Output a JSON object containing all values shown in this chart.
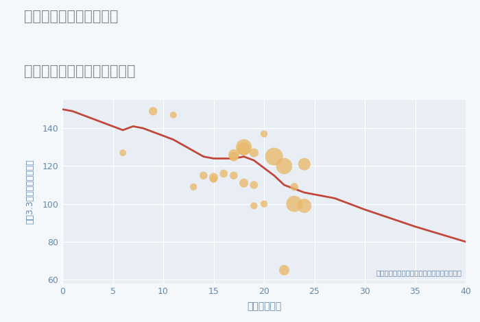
{
  "title_line1": "兵庫県西宮市樋ノ口町の",
  "title_line2": "築年数別中古マンション価格",
  "xlabel": "築年数（年）",
  "ylabel": "坪（3.3㎡）単価（万円）",
  "annotation": "円の大きさは、取引のあった物件面積を示す",
  "xlim": [
    0,
    40
  ],
  "ylim": [
    58,
    155
  ],
  "xticks": [
    0,
    5,
    10,
    15,
    20,
    25,
    30,
    35,
    40
  ],
  "yticks": [
    60,
    80,
    100,
    120,
    140
  ],
  "fig_bg_color": "#f5f8fb",
  "plot_bg_color": "#e8eef4",
  "line_color": "#c0473a",
  "scatter_color": "#e8b96a",
  "scatter_alpha": 0.78,
  "title_color": "#888888",
  "axis_color": "#6688aa",
  "tick_color": "#6688aa",
  "grid_color": "#ffffff",
  "line_x": [
    0,
    1,
    2,
    3,
    4,
    5,
    6,
    7,
    8,
    9,
    10,
    11,
    12,
    13,
    14,
    15,
    16,
    17,
    18,
    19,
    20,
    21,
    22,
    23,
    24,
    25,
    26,
    27,
    28,
    29,
    30,
    35,
    40
  ],
  "line_y": [
    150,
    149,
    147,
    145,
    143,
    141,
    139,
    141,
    140,
    138,
    136,
    134,
    131,
    128,
    125,
    124,
    124,
    124,
    125,
    123,
    119,
    115,
    110,
    108,
    106,
    105,
    104,
    103,
    101,
    99,
    97,
    88,
    80
  ],
  "scatter_x": [
    6,
    9,
    11,
    13,
    14,
    15,
    15,
    16,
    17,
    17,
    17,
    18,
    18,
    18,
    19,
    19,
    19,
    20,
    20,
    21,
    22,
    22,
    23,
    23,
    24,
    24
  ],
  "scatter_y": [
    127,
    149,
    147,
    109,
    115,
    114,
    113,
    116,
    126,
    125,
    115,
    130,
    129,
    111,
    110,
    127,
    99,
    137,
    100,
    125,
    120,
    65,
    109,
    100,
    121,
    99
  ],
  "scatter_size": [
    50,
    80,
    50,
    55,
    70,
    90,
    55,
    70,
    130,
    100,
    70,
    280,
    190,
    90,
    70,
    90,
    55,
    55,
    55,
    350,
    290,
    120,
    70,
    290,
    170,
    220
  ]
}
